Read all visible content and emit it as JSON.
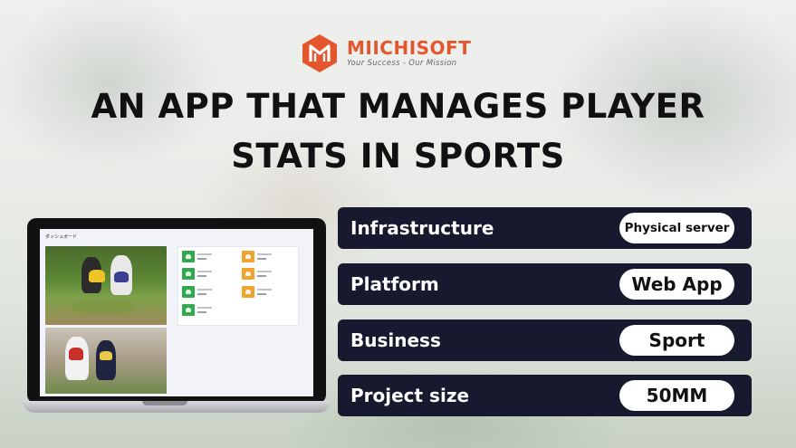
{
  "brand": {
    "name": "MIICHISOFT",
    "tagline": "Your Success - Our Mission",
    "color": "#e4572e"
  },
  "headline": {
    "line1": "AN APP THAT MANAGES PLAYER",
    "line2": "STATS IN SPORTS"
  },
  "dashboard": {
    "title": "ダッシュボード"
  },
  "specs": [
    {
      "label": "Infrastructure",
      "value": "Physical server"
    },
    {
      "label": "Platform",
      "value": "Web App"
    },
    {
      "label": "Business",
      "value": "Sport"
    },
    {
      "label": "Project size",
      "value": "50MM"
    }
  ],
  "colors": {
    "row_background": "#17192f",
    "card_green": "#31a94e",
    "card_orange": "#f2a32d"
  }
}
